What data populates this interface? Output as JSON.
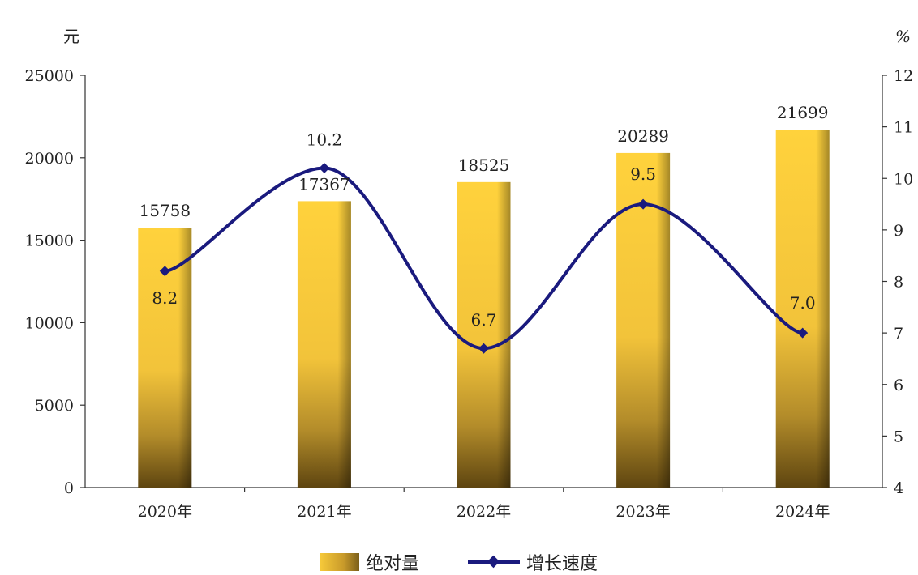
{
  "chart_data": {
    "type": "bar",
    "categories": [
      "2020年",
      "2021年",
      "2022年",
      "2023年",
      "2024年"
    ],
    "series": [
      {
        "name": "绝对量",
        "type": "bar",
        "axis": "left",
        "values": [
          15758,
          17367,
          18525,
          20289,
          21699
        ],
        "labels": [
          "15758",
          "17367",
          "18525",
          "20289",
          "21699"
        ]
      },
      {
        "name": "增长速度",
        "type": "line",
        "axis": "right",
        "smooth": true,
        "values": [
          8.2,
          10.2,
          6.7,
          9.5,
          7.0
        ],
        "labels": [
          "8.2",
          "10.2",
          "6.7",
          "9.5",
          "7.0"
        ]
      }
    ],
    "y_left": {
      "unit": "元",
      "min": 0,
      "max": 25000,
      "ticks": [
        "0",
        "5000",
        "10000",
        "15000",
        "20000",
        "25000"
      ]
    },
    "y_right": {
      "unit": "%",
      "min": 4,
      "max": 12,
      "ticks": [
        "4",
        "5",
        "6",
        "7",
        "8",
        "9",
        "10",
        "11",
        "12"
      ]
    },
    "colors": {
      "bar_top": "#f6c93a",
      "bar_bottom": "#6a4f14",
      "line": "#1a1a7e"
    },
    "grid": false,
    "legend_position": "bottom-center"
  }
}
